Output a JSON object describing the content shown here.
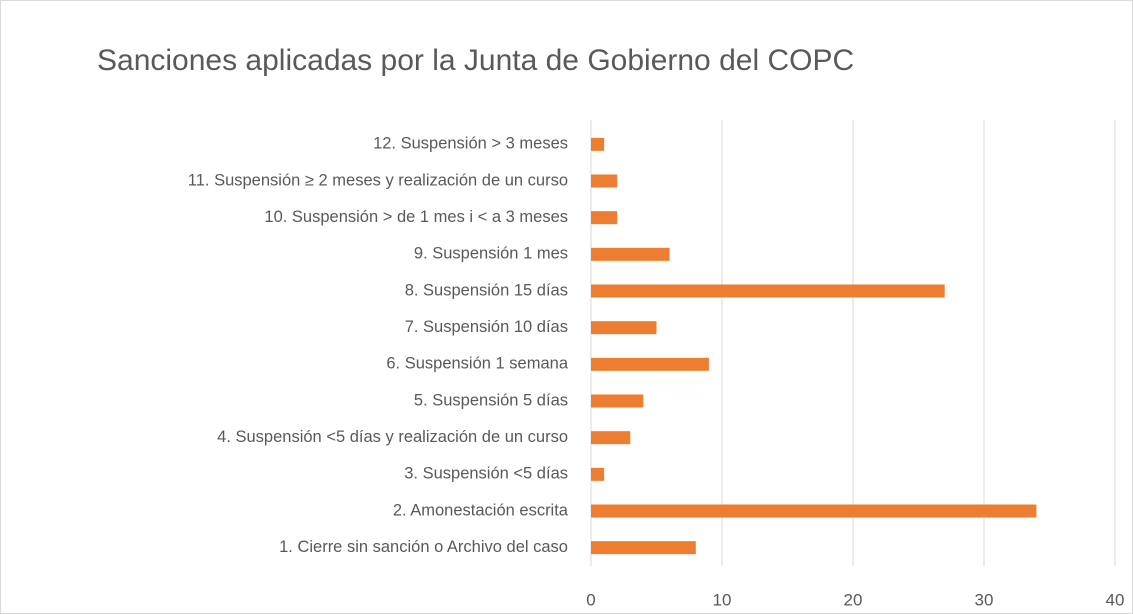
{
  "chart_data": {
    "type": "bar",
    "orientation": "horizontal",
    "title": "Sanciones aplicadas por la Junta de Gobierno del COPC",
    "categories": [
      "1. Cierre sin sanción o Archivo del caso",
      "2. Amonestación escrita",
      "3. Suspensión <5 días",
      "4. Suspensión <5 días y realización de un curso",
      "5. Suspensión 5 días",
      "6. Suspensión 1 semana",
      "7. Suspensión 10 días",
      "8. Suspensión 15 días",
      "9. Suspensión 1 mes",
      "10. Suspensión > de 1 mes i < a 3 meses",
      "11. Suspensión ≥ 2 meses y realización de un curso",
      "12. Suspensión > 3 meses"
    ],
    "values": [
      8,
      34,
      1,
      3,
      4,
      9,
      5,
      27,
      6,
      2,
      2,
      1
    ],
    "color": "#ed7d31",
    "xlim": [
      0,
      40
    ],
    "xticks": [
      0,
      10,
      20,
      30,
      40
    ],
    "grid": true
  }
}
